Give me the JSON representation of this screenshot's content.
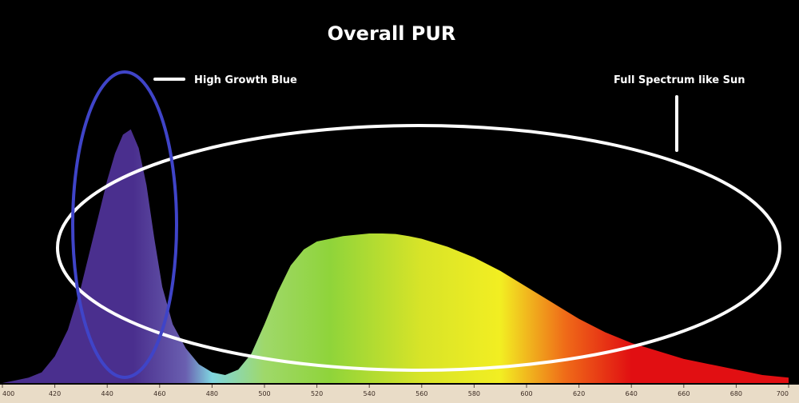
{
  "chart_data": {
    "type": "area",
    "title": "Overall PUR",
    "xlabel": "",
    "ylabel": "",
    "xlim": [
      400,
      700
    ],
    "ylim": [
      0,
      1
    ],
    "grid": false,
    "x_ticks": [
      "400",
      "420",
      "440",
      "460",
      "480",
      "500",
      "520",
      "540",
      "560",
      "580",
      "600",
      "620",
      "640",
      "660",
      "680",
      "700"
    ],
    "x": [
      400,
      405,
      410,
      415,
      420,
      425,
      430,
      435,
      440,
      443,
      446,
      449,
      452,
      455,
      458,
      461,
      465,
      470,
      475,
      480,
      485,
      490,
      495,
      500,
      505,
      510,
      515,
      520,
      525,
      530,
      535,
      540,
      545,
      550,
      555,
      560,
      570,
      580,
      590,
      600,
      610,
      620,
      630,
      640,
      650,
      660,
      670,
      680,
      690,
      700
    ],
    "series": [
      {
        "values": [
          0.0,
          0.01,
          0.02,
          0.04,
          0.1,
          0.2,
          0.36,
          0.56,
          0.76,
          0.86,
          0.93,
          0.95,
          0.88,
          0.74,
          0.54,
          0.36,
          0.22,
          0.13,
          0.07,
          0.04,
          0.03,
          0.05,
          0.11,
          0.22,
          0.34,
          0.44,
          0.5,
          0.53,
          0.54,
          0.55,
          0.555,
          0.56,
          0.56,
          0.558,
          0.55,
          0.54,
          0.51,
          0.47,
          0.42,
          0.36,
          0.3,
          0.24,
          0.19,
          0.15,
          0.12,
          0.09,
          0.07,
          0.05,
          0.03,
          0.02
        ]
      }
    ],
    "annotations": {
      "blue_label": "High Growth Blue",
      "full_label": "Full Spectrum like Sun"
    },
    "colors": {
      "blue_ellipse": "#3f44c8",
      "white_ellipse": "#ffffff",
      "violet": "#4a2f8e",
      "cyan": "#7fd6e0",
      "green": "#8fd43a",
      "yellow": "#f2ee22",
      "orange": "#ef6a18",
      "red": "#e10f12"
    }
  }
}
